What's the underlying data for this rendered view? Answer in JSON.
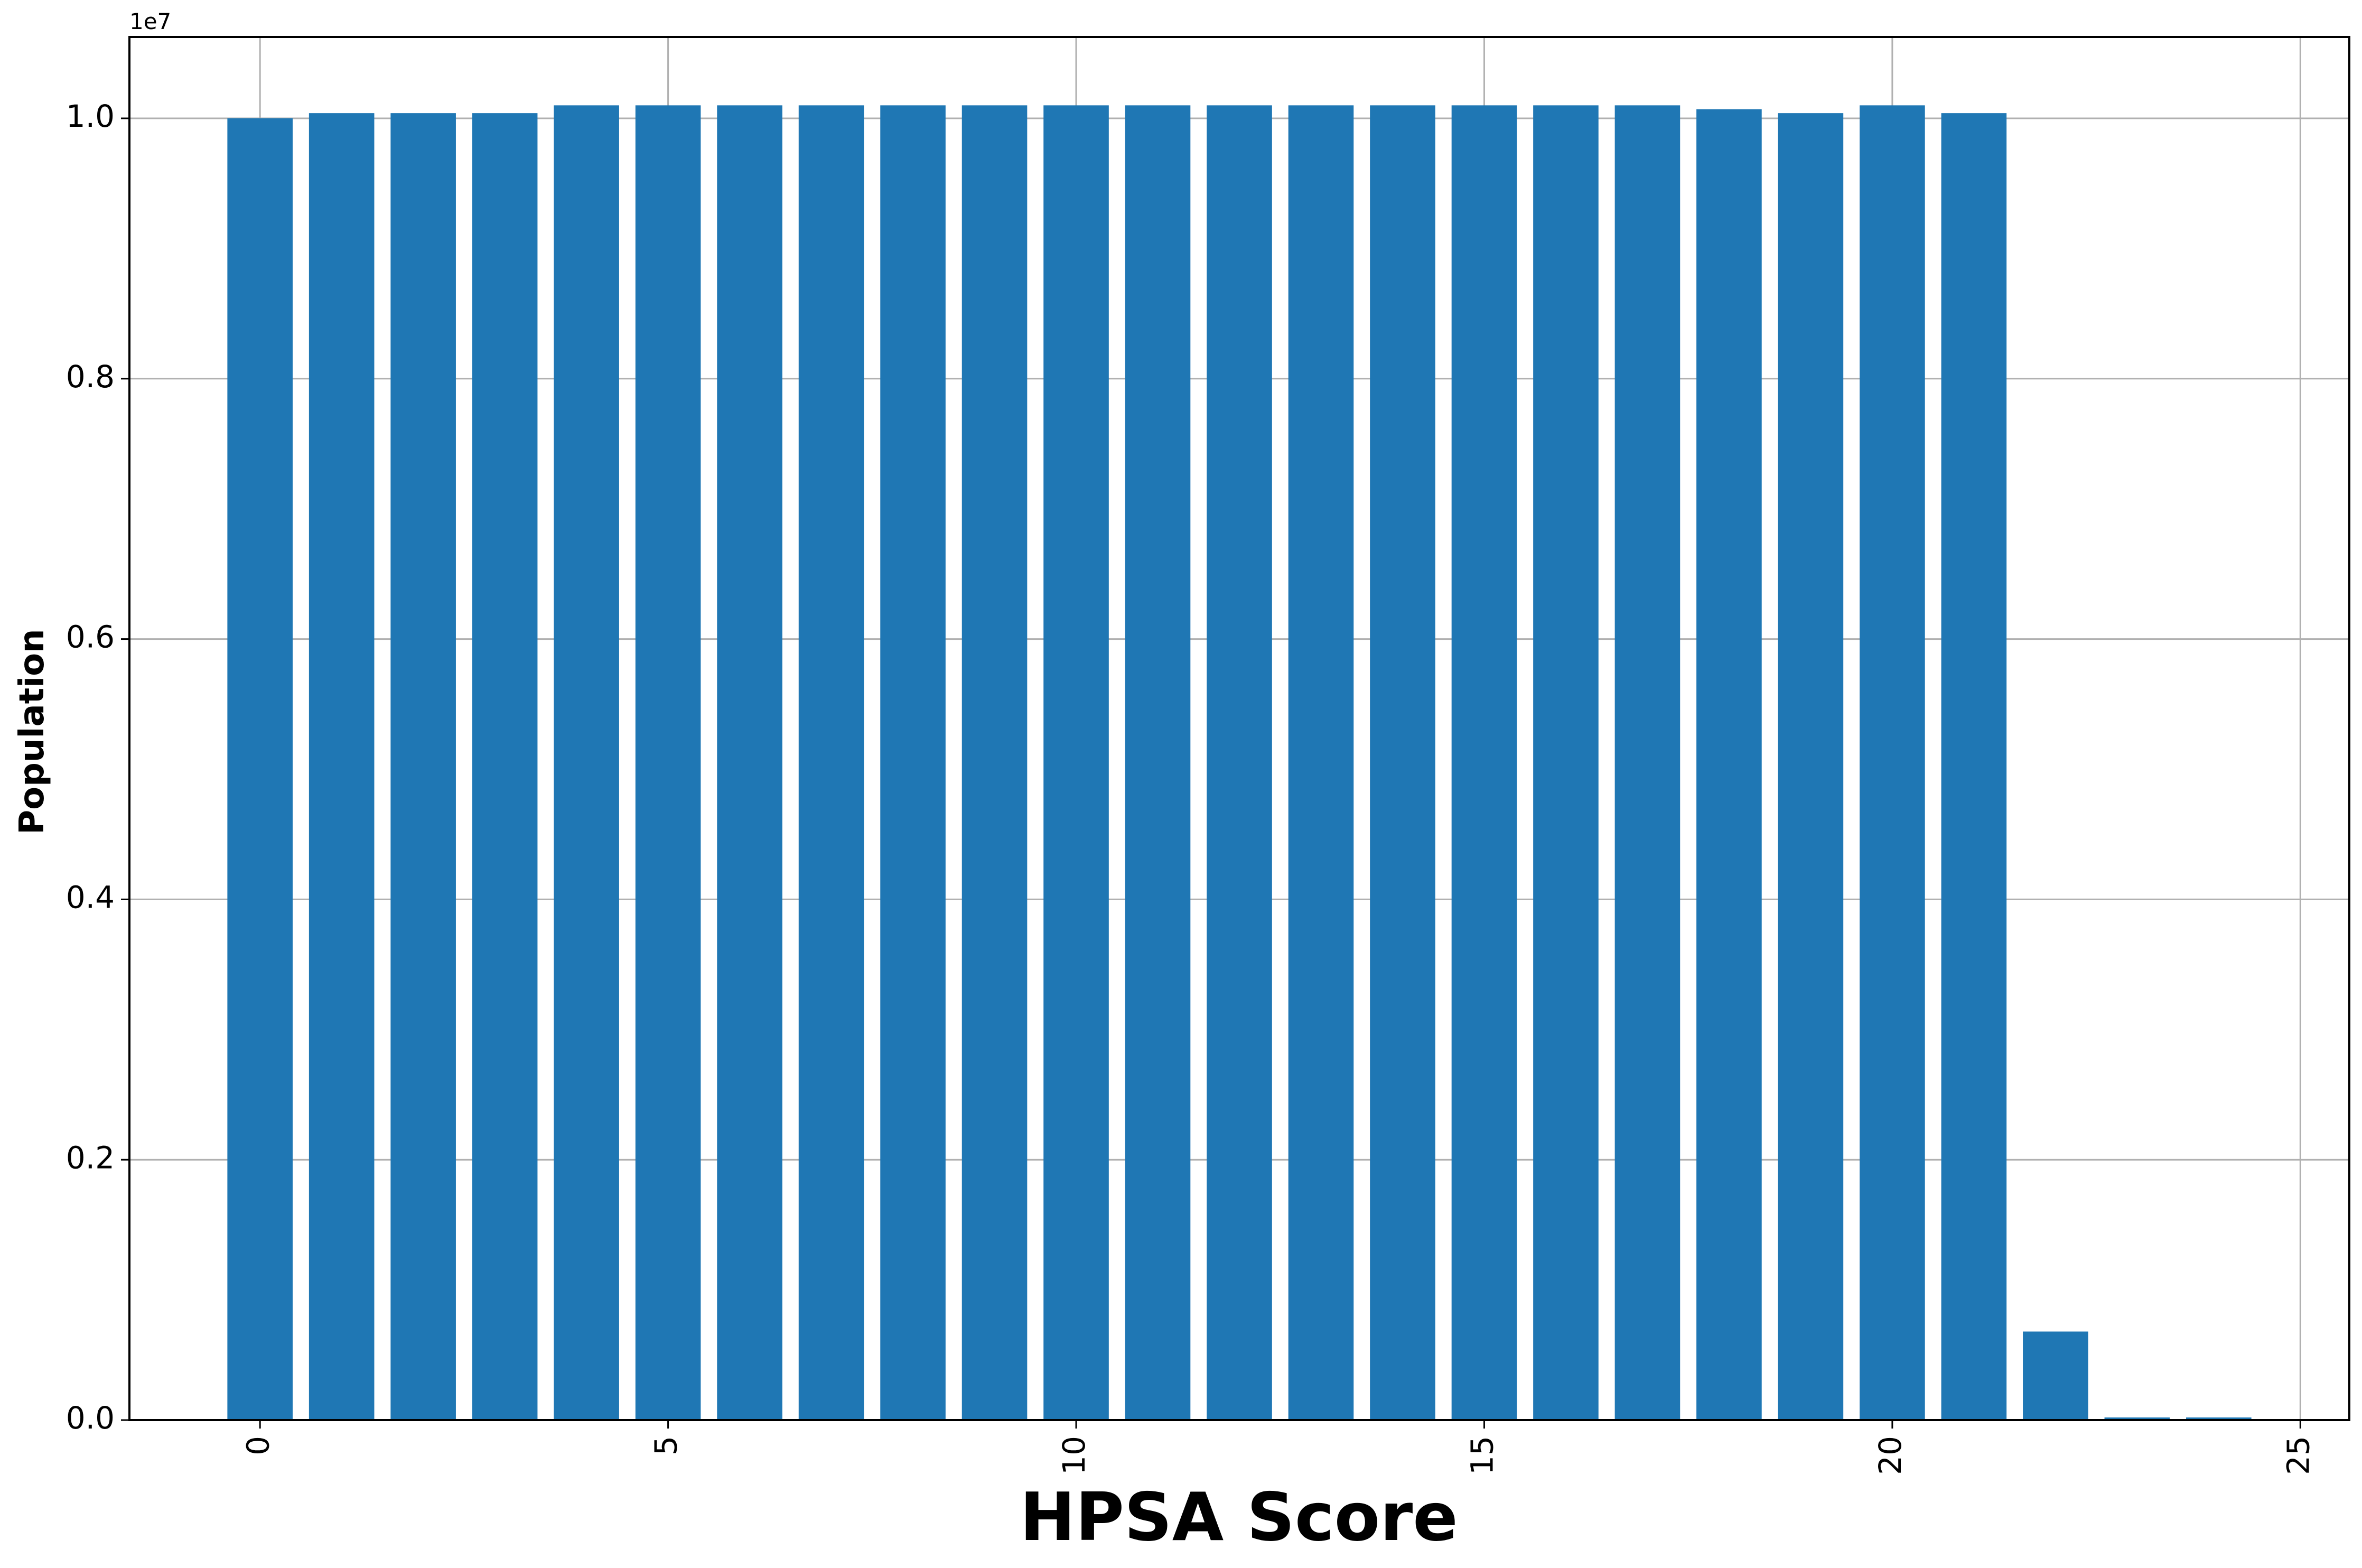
{
  "chart_data": {
    "type": "bar",
    "title": "",
    "xlabel": "HPSA Score",
    "ylabel": "Population",
    "y_offset_label": "1e7",
    "x": [
      0,
      1,
      2,
      3,
      4,
      5,
      6,
      7,
      8,
      9,
      10,
      11,
      12,
      13,
      14,
      15,
      16,
      17,
      18,
      19,
      20,
      21,
      22,
      23,
      24
    ],
    "values": [
      10000000,
      10040000,
      10040000,
      10040000,
      10100000,
      10100000,
      10100000,
      10100000,
      10100000,
      10100000,
      10100000,
      10100000,
      10100000,
      10100000,
      10100000,
      10100000,
      10100000,
      10100000,
      10070000,
      10040000,
      10100000,
      10040000,
      680000,
      20000,
      20000
    ],
    "xlim": [
      -1.6,
      25.6
    ],
    "ylim": [
      0,
      1.0625
    ],
    "y_scale": 10000000,
    "x_ticks": [
      0,
      5,
      10,
      15,
      20,
      25
    ],
    "x_tick_labels": [
      "0",
      "5",
      "10",
      "15",
      "20",
      "25"
    ],
    "y_ticks": [
      0.0,
      0.2,
      0.4,
      0.6,
      0.8,
      1.0
    ],
    "y_tick_labels": [
      "0.0",
      "0.2",
      "0.4",
      "0.6",
      "0.8",
      "1.0"
    ],
    "grid": true,
    "bar_color": "#1f77b4",
    "grid_color": "#b0b0b0"
  }
}
